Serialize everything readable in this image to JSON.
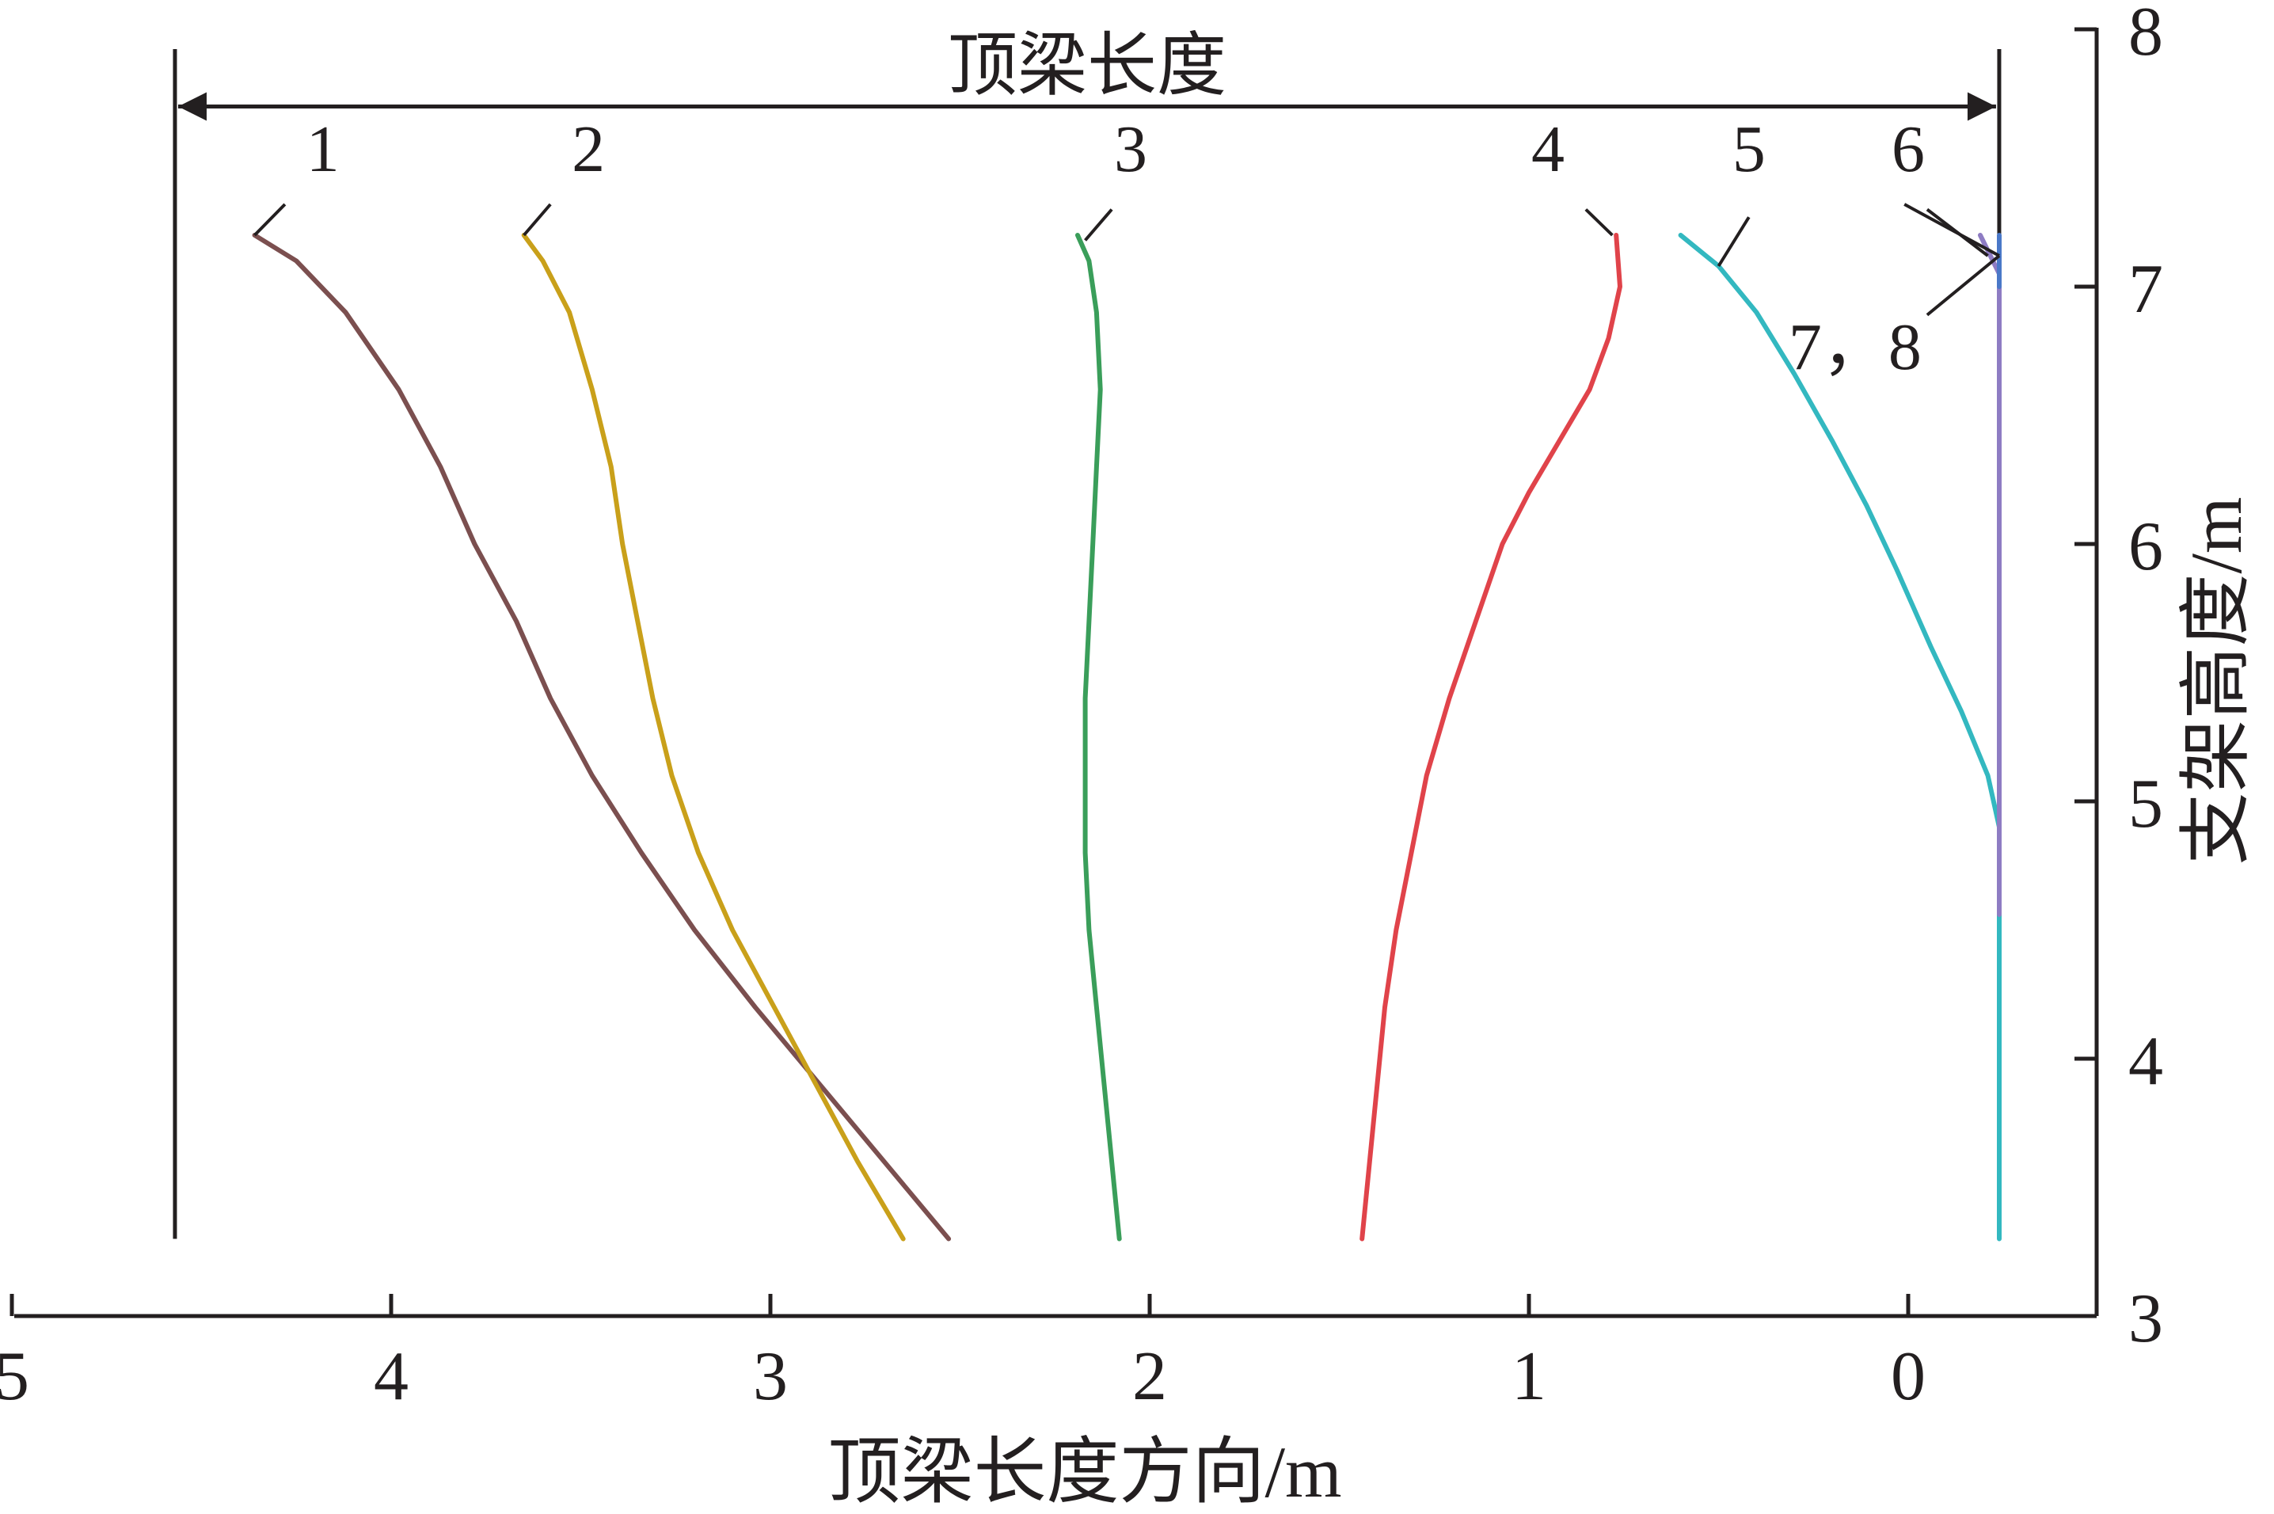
{
  "chart_data": {
    "type": "line",
    "xlabel": "顶梁长度方向/m",
    "ylabel": "支架高度/m",
    "x_reversed": true,
    "xlim": [
      5,
      -0.25
    ],
    "ylim": [
      3,
      8
    ],
    "x_ticks": [
      "5",
      "4",
      "3",
      "2",
      "1",
      "0"
    ],
    "y_ticks": [
      "3",
      "4",
      "5",
      "6",
      "7",
      "8"
    ],
    "annotation": {
      "label": "顶梁长度",
      "x_from": 4.57,
      "x_to": -0.24,
      "y": 7.7
    },
    "support_lines_x": [
      4.57,
      -0.24
    ],
    "support_bottom_y": 3.3,
    "colors": {
      "axis": "#231f20",
      "1": "#7b4f4f",
      "2": "#c9a01a",
      "3": "#3a9e5a",
      "4": "#e0434a",
      "5": "#33b8c0",
      "6": "#8e7cc3",
      "7": "#4a78c8"
    },
    "series": [
      {
        "name": "1",
        "label_text": "1",
        "color": "#7b4f4f",
        "points": [
          [
            4.36,
            7.2
          ],
          [
            4.25,
            7.1
          ],
          [
            4.12,
            6.9
          ],
          [
            3.98,
            6.6
          ],
          [
            3.87,
            6.3
          ],
          [
            3.78,
            6.0
          ],
          [
            3.67,
            5.7
          ],
          [
            3.58,
            5.4
          ],
          [
            3.47,
            5.1
          ],
          [
            3.34,
            4.8
          ],
          [
            3.2,
            4.5
          ],
          [
            3.04,
            4.2
          ],
          [
            2.87,
            3.9
          ],
          [
            2.7,
            3.6
          ],
          [
            2.53,
            3.3
          ]
        ],
        "label_x": 4.18,
        "label_y": 7.45,
        "leader": [
          [
            4.36,
            7.2
          ],
          [
            4.28,
            7.32
          ]
        ]
      },
      {
        "name": "2",
        "label_text": "2",
        "color": "#c9a01a",
        "points": [
          [
            3.65,
            7.2
          ],
          [
            3.6,
            7.1
          ],
          [
            3.53,
            6.9
          ],
          [
            3.47,
            6.6
          ],
          [
            3.42,
            6.3
          ],
          [
            3.39,
            6.0
          ],
          [
            3.35,
            5.7
          ],
          [
            3.31,
            5.4
          ],
          [
            3.26,
            5.1
          ],
          [
            3.19,
            4.8
          ],
          [
            3.1,
            4.5
          ],
          [
            2.99,
            4.2
          ],
          [
            2.88,
            3.9
          ],
          [
            2.77,
            3.6
          ],
          [
            2.65,
            3.3
          ]
        ],
        "label_x": 3.48,
        "label_y": 7.45,
        "leader": [
          [
            3.65,
            7.2
          ],
          [
            3.58,
            7.32
          ]
        ]
      },
      {
        "name": "3",
        "label_text": "3",
        "color": "#3a9e5a",
        "points": [
          [
            2.19,
            7.2
          ],
          [
            2.16,
            7.1
          ],
          [
            2.14,
            6.9
          ],
          [
            2.13,
            6.6
          ],
          [
            2.14,
            6.3
          ],
          [
            2.15,
            6.0
          ],
          [
            2.16,
            5.7
          ],
          [
            2.17,
            5.4
          ],
          [
            2.17,
            5.1
          ],
          [
            2.17,
            4.8
          ],
          [
            2.16,
            4.5
          ],
          [
            2.14,
            4.2
          ],
          [
            2.12,
            3.9
          ],
          [
            2.1,
            3.6
          ],
          [
            2.08,
            3.3
          ]
        ],
        "label_x": 2.05,
        "label_y": 7.45,
        "leader": [
          [
            2.17,
            7.18
          ],
          [
            2.1,
            7.3
          ]
        ]
      },
      {
        "name": "4",
        "label_text": "4",
        "color": "#e0434a",
        "points": [
          [
            0.77,
            7.2
          ],
          [
            0.76,
            7.0
          ],
          [
            0.79,
            6.8
          ],
          [
            0.84,
            6.6
          ],
          [
            0.92,
            6.4
          ],
          [
            1.0,
            6.2
          ],
          [
            1.07,
            6.0
          ],
          [
            1.14,
            5.7
          ],
          [
            1.21,
            5.4
          ],
          [
            1.27,
            5.1
          ],
          [
            1.31,
            4.8
          ],
          [
            1.35,
            4.5
          ],
          [
            1.38,
            4.2
          ],
          [
            1.4,
            3.9
          ],
          [
            1.42,
            3.6
          ],
          [
            1.44,
            3.3
          ]
        ],
        "label_x": 0.95,
        "label_y": 7.45,
        "leader": [
          [
            0.78,
            7.2
          ],
          [
            0.85,
            7.3
          ]
        ]
      },
      {
        "name": "5",
        "label_text": "5",
        "color": "#33b8c0",
        "points": [
          [
            0.6,
            7.2
          ],
          [
            0.5,
            7.08
          ],
          [
            0.4,
            6.9
          ],
          [
            0.3,
            6.66
          ],
          [
            0.2,
            6.4
          ],
          [
            0.11,
            6.15
          ],
          [
            0.03,
            5.9
          ],
          [
            -0.06,
            5.6
          ],
          [
            -0.14,
            5.35
          ],
          [
            -0.21,
            5.1
          ],
          [
            -0.24,
            4.9
          ],
          [
            -0.24,
            4.56
          ],
          [
            -0.24,
            4.2
          ],
          [
            -0.24,
            3.8
          ],
          [
            -0.24,
            3.3
          ]
        ],
        "label_x": 0.42,
        "label_y": 7.45,
        "leader": [
          [
            0.5,
            7.08
          ],
          [
            0.42,
            7.27
          ]
        ]
      },
      {
        "name": "6",
        "label_text": "6",
        "color": "#8e7cc3",
        "points": [
          [
            -0.19,
            7.2
          ],
          [
            -0.24,
            7.05
          ],
          [
            -0.24,
            6.5
          ],
          [
            -0.24,
            6.0
          ],
          [
            -0.24,
            5.5
          ],
          [
            -0.24,
            5.0
          ],
          [
            -0.24,
            4.56
          ]
        ],
        "label_x": 0.0,
        "label_y": 7.45,
        "leader": [
          [
            -0.21,
            7.12
          ],
          [
            -0.05,
            7.3
          ]
        ]
      },
      {
        "name": "7",
        "label_text": "7，8",
        "color": "#4a78c8",
        "points": [
          [
            -0.24,
            7.2
          ],
          [
            -0.24,
            7.0
          ]
        ],
        "label_x": 0.14,
        "label_y": 6.68,
        "leader": [
          [
            -0.24,
            7.12
          ],
          [
            -0.05,
            6.89
          ]
        ]
      }
    ]
  }
}
